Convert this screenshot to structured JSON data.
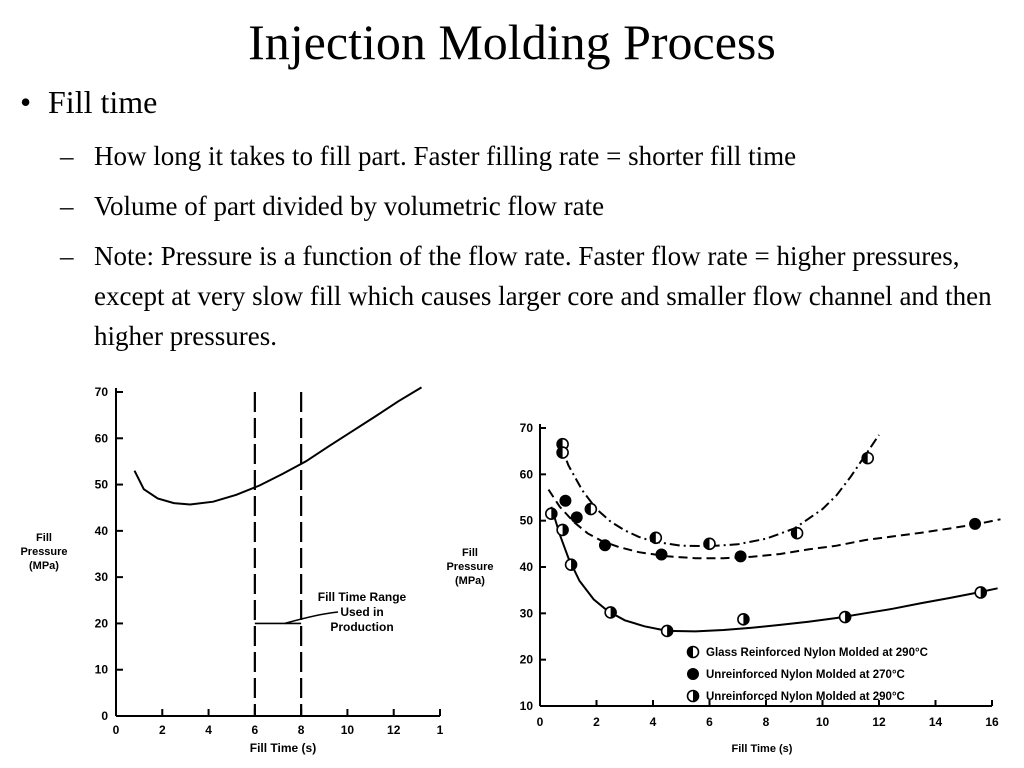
{
  "slide": {
    "title": "Injection Molding Process",
    "bullet": "Fill time",
    "sub_bullets": [
      "How long it takes to fill part.  Faster filling rate = shorter fill time",
      "Volume of part divided by volumetric flow rate",
      "Note: Pressure is a function of the flow rate.  Faster flow rate = higher pressures, except at very slow fill which causes larger core and smaller flow  channel and then higher pressures."
    ]
  },
  "chart_data": [
    {
      "type": "line",
      "ylabel": [
        "Fill",
        "Pressure",
        "(MPa)"
      ],
      "xlabel": "Fill Time (s)",
      "xlim": [
        0,
        14
      ],
      "ylim": [
        0,
        70
      ],
      "x_ticks": [
        "0",
        "2",
        "4",
        "6",
        "8",
        "10",
        "12",
        "1"
      ],
      "y_ticks": [
        "0",
        "10",
        "20",
        "30",
        "40",
        "50",
        "60",
        "70"
      ],
      "series": [
        {
          "x": [
            0.8,
            1.2,
            1.8,
            2.5,
            3.2,
            4.2,
            5.2,
            6.2,
            7.2,
            8.2,
            9.2,
            10.2,
            11.2,
            12.2,
            13.2
          ],
          "y": [
            53.0,
            49.0,
            47.0,
            46.0,
            45.7,
            46.3,
            47.8,
            49.8,
            52.3,
            55.0,
            58.3,
            61.5,
            64.7,
            68.0,
            71.0
          ]
        }
      ],
      "reference_lines_x": [
        6,
        8
      ],
      "range_bar": {
        "x_start": 6,
        "x_end": 8,
        "y": 20
      },
      "annotation": [
        "Fill Time Range",
        "Used in",
        "Production"
      ]
    },
    {
      "type": "scatter",
      "ylabel": [
        "Fill",
        "Pressure",
        "(MPa)"
      ],
      "xlabel": "Fill Time (s)",
      "xlim": [
        0,
        16
      ],
      "ylim": [
        10,
        70
      ],
      "x_ticks": [
        "0",
        "2",
        "4",
        "6",
        "8",
        "10",
        "12",
        "14",
        "16"
      ],
      "y_ticks": [
        "10",
        "20",
        "30",
        "40",
        "50",
        "60",
        "70"
      ],
      "series": [
        {
          "name": "Glass Reinforced Nylon Molded at 290°C",
          "marker": "left-half",
          "points_x": [
            0.8,
            0.8,
            1.8,
            4.1,
            6.0,
            9.1,
            11.6
          ],
          "points_y": [
            66.5,
            64.7,
            52.5,
            46.3,
            45.0,
            47.3,
            63.5
          ],
          "curve_x": [
            0.7,
            1.0,
            1.5,
            2.0,
            2.5,
            3.0,
            3.5,
            4.0,
            5.0,
            6.0,
            7.0,
            8.0,
            9.0,
            10.0,
            10.5,
            11.0,
            11.5,
            12.0
          ],
          "curve_y": [
            67.0,
            62.0,
            56.5,
            52.5,
            49.8,
            47.9,
            46.5,
            45.5,
            44.6,
            44.5,
            44.9,
            46.1,
            48.3,
            52.5,
            55.5,
            59.5,
            64.0,
            68.5
          ]
        },
        {
          "name": "Unreinforced Nylon Molded at 270°C",
          "marker": "filled",
          "points_x": [
            0.9,
            1.3,
            2.3,
            4.3,
            7.1,
            15.4
          ],
          "points_y": [
            54.3,
            50.7,
            44.7,
            42.7,
            42.3,
            49.3
          ],
          "curve_x": [
            0.3,
            0.7,
            1.2,
            1.7,
            2.2,
            2.8,
            3.5,
            4.5,
            5.5,
            6.5,
            7.5,
            8.5,
            9.5,
            10.5,
            11.5,
            12.5,
            13.5,
            14.5,
            15.5,
            16.3
          ],
          "curve_y": [
            56.7,
            53.0,
            49.7,
            47.2,
            45.6,
            44.3,
            43.2,
            42.3,
            41.9,
            41.9,
            42.2,
            42.8,
            43.8,
            44.6,
            45.8,
            46.6,
            47.4,
            48.3,
            49.3,
            50.3
          ]
        },
        {
          "name": "Unreinforced Nylon Molded at 290°C",
          "marker": "right-half",
          "points_x": [
            0.4,
            0.8,
            1.1,
            2.5,
            4.5,
            7.2,
            10.8,
            15.6
          ],
          "points_y": [
            51.5,
            48.0,
            40.5,
            30.2,
            26.2,
            28.7,
            29.2,
            34.5
          ],
          "curve_x": [
            0.4,
            0.7,
            1.0,
            1.4,
            1.9,
            2.4,
            3.0,
            3.7,
            4.5,
            5.5,
            6.5,
            7.5,
            8.5,
            9.5,
            10.5,
            11.5,
            12.5,
            13.5,
            14.5,
            15.5,
            16.2
          ],
          "curve_y": [
            53.0,
            47.0,
            42.0,
            37.0,
            33.0,
            30.5,
            28.5,
            27.2,
            26.2,
            26.1,
            26.4,
            26.9,
            27.5,
            28.2,
            29.0,
            30.0,
            31.0,
            32.2,
            33.3,
            34.5,
            35.4
          ]
        }
      ]
    }
  ]
}
